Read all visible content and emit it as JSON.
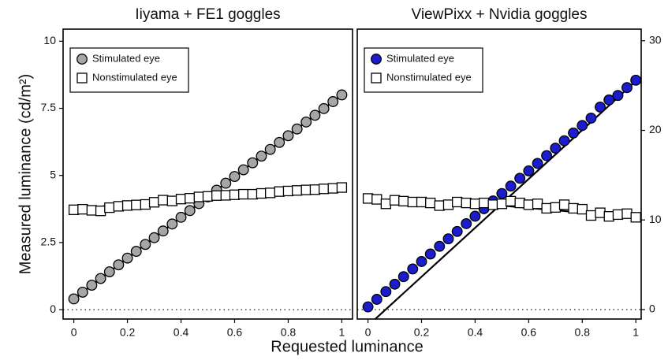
{
  "axis_labels": {
    "x": "Requested luminance",
    "y": "Measured luminance (cd/m²)"
  },
  "chart_data": [
    {
      "type": "scatter",
      "title": "Iiyama + FE1 goggles",
      "yaxis_side": "left",
      "xlim": [
        -0.04,
        1.04
      ],
      "ylim": [
        -0.35,
        10.45
      ],
      "xticks": [
        0,
        0.2,
        0.4,
        0.6,
        0.8,
        1
      ],
      "yticks": [
        0,
        2.5,
        5,
        7.5,
        10
      ],
      "hline": 0,
      "x": [
        0,
        0.033,
        0.067,
        0.1,
        0.133,
        0.167,
        0.2,
        0.233,
        0.267,
        0.3,
        0.333,
        0.367,
        0.4,
        0.433,
        0.467,
        0.5,
        0.533,
        0.567,
        0.6,
        0.633,
        0.667,
        0.7,
        0.733,
        0.767,
        0.8,
        0.833,
        0.867,
        0.9,
        0.933,
        0.967,
        1
      ],
      "series": [
        {
          "name": "Stimulated eye",
          "marker": "circle",
          "color": "#a6a6a6",
          "values": [
            0.4,
            0.65,
            0.91,
            1.16,
            1.41,
            1.67,
            1.92,
            2.17,
            2.43,
            2.68,
            2.93,
            3.19,
            3.44,
            3.69,
            3.95,
            4.2,
            4.45,
            4.71,
            4.96,
            5.21,
            5.47,
            5.72,
            5.97,
            6.23,
            6.48,
            6.73,
            6.99,
            7.24,
            7.49,
            7.75,
            8.0
          ],
          "fit": {
            "x": [
              0,
              1
            ],
            "values": [
              0.4,
              8.0
            ]
          }
        },
        {
          "name": "Nonstimulated eye",
          "marker": "square",
          "color": "#ffffff",
          "values": [
            3.72,
            3.74,
            3.7,
            3.68,
            3.8,
            3.85,
            3.88,
            3.9,
            3.92,
            4.0,
            4.08,
            4.05,
            4.12,
            4.15,
            4.2,
            4.22,
            4.25,
            4.26,
            4.28,
            4.3,
            4.3,
            4.33,
            4.35,
            4.4,
            4.42,
            4.44,
            4.46,
            4.47,
            4.5,
            4.52,
            4.55
          ],
          "fit": {
            "x": [
              0,
              0.5,
              1
            ],
            "values": [
              3.75,
              4.2,
              4.5
            ]
          }
        }
      ]
    },
    {
      "type": "scatter",
      "title": "ViewPixx + Nvidia goggles",
      "yaxis_side": "right",
      "xlim": [
        -0.04,
        1.02
      ],
      "ylim": [
        -1.06,
        31.3
      ],
      "xticks": [
        0,
        0.2,
        0.4,
        0.6,
        0.8,
        1
      ],
      "yticks": [
        0,
        10,
        20,
        30
      ],
      "hline": 0,
      "x": [
        0,
        0.033,
        0.067,
        0.1,
        0.133,
        0.167,
        0.2,
        0.233,
        0.267,
        0.3,
        0.333,
        0.367,
        0.4,
        0.433,
        0.467,
        0.5,
        0.533,
        0.567,
        0.6,
        0.633,
        0.667,
        0.7,
        0.733,
        0.767,
        0.8,
        0.833,
        0.867,
        0.9,
        0.933,
        0.967,
        1
      ],
      "series": [
        {
          "name": "Stimulated eye",
          "marker": "circle",
          "color": "#1c1ccf",
          "values": [
            0.3,
            1.14,
            2.0,
            2.83,
            3.67,
            4.53,
            5.36,
            6.2,
            7.06,
            7.89,
            8.72,
            9.59,
            10.42,
            11.25,
            12.12,
            12.95,
            13.78,
            14.65,
            15.48,
            16.31,
            17.18,
            18.01,
            18.84,
            19.71,
            20.54,
            21.37,
            22.6,
            23.4,
            23.9,
            24.77,
            25.6
          ],
          "fit": {
            "x": [
              0,
              1
            ],
            "values": [
              -1.8,
              25.5
            ]
          }
        },
        {
          "name": "Nonstimulated eye",
          "marker": "square",
          "color": "#ffffff",
          "values": [
            12.4,
            12.3,
            11.8,
            12.2,
            12.1,
            12.0,
            12.0,
            11.9,
            11.6,
            11.7,
            12.0,
            11.9,
            11.8,
            11.9,
            11.7,
            11.8,
            12.1,
            11.9,
            11.7,
            11.8,
            11.3,
            11.4,
            11.7,
            11.3,
            11.2,
            10.5,
            10.8,
            10.4,
            10.6,
            10.7,
            10.3
          ],
          "fit": {
            "x": [
              0,
              0.5,
              1
            ],
            "values": [
              12.1,
              11.6,
              10.3
            ]
          }
        }
      ]
    }
  ]
}
